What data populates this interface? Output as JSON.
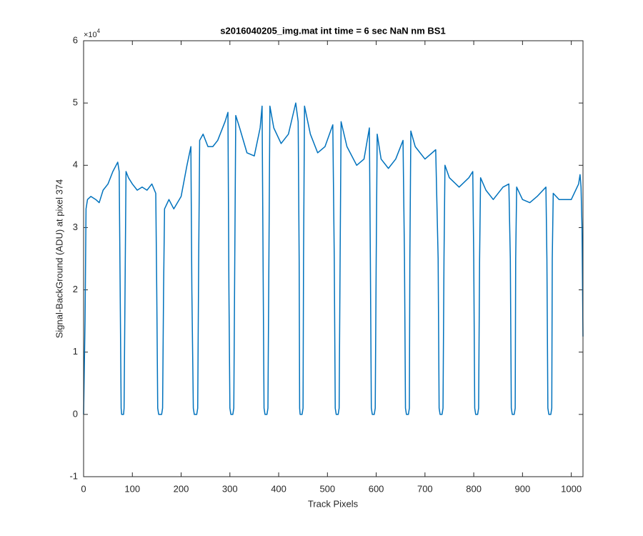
{
  "chart_data": {
    "type": "line",
    "title": "s2016040205_img.mat int time = 6 sec  NaN nm BS1",
    "xlabel": "Track Pixels",
    "ylabel": "Signal-BackGround (ADU) at pixel 374",
    "y_multiplier": {
      "base": "×10",
      "exponent": "4"
    },
    "xlim": [
      0,
      1024
    ],
    "ylim": [
      -1,
      6
    ],
    "xticks": [
      0,
      100,
      200,
      300,
      400,
      500,
      600,
      700,
      800,
      900,
      1000
    ],
    "yticks": [
      -1,
      0,
      1,
      2,
      3,
      4,
      5,
      6
    ],
    "grid": false,
    "series": [
      {
        "color": "#0072bd",
        "x": [
          0,
          3,
          5,
          8,
          15,
          25,
          32,
          40,
          50,
          60,
          70,
          73,
          75,
          77,
          78,
          82,
          83,
          85,
          87,
          92,
          100,
          110,
          120,
          130,
          140,
          148,
          150,
          152,
          154,
          160,
          162,
          164,
          166,
          175,
          185,
          200,
          212,
          220,
          222,
          225,
          227,
          232,
          234,
          236,
          238,
          245,
          255,
          265,
          275,
          290,
          296,
          298,
          300,
          302,
          306,
          308,
          310,
          312,
          320,
          335,
          350,
          362,
          366,
          368,
          370,
          372,
          376,
          378,
          380,
          382,
          390,
          405,
          420,
          435,
          440,
          442,
          443,
          444,
          448,
          450,
          451,
          453,
          465,
          480,
          495,
          511,
          514,
          516,
          518,
          522,
          524,
          526,
          528,
          540,
          560,
          575,
          586,
          588,
          590,
          592,
          596,
          598,
          600,
          602,
          610,
          625,
          640,
          655,
          658,
          660,
          662,
          666,
          668,
          669,
          671,
          680,
          700,
          722,
          727,
          729,
          731,
          735,
          737,
          739,
          741,
          750,
          770,
          790,
          798,
          800,
          802,
          804,
          808,
          810,
          812,
          814,
          825,
          840,
          860,
          872,
          875,
          877,
          879,
          883,
          885,
          886,
          888,
          900,
          915,
          930,
          948,
          950,
          952,
          954,
          958,
          960,
          961,
          963,
          975,
          1000,
          1015,
          1018,
          1020,
          1022,
          1024
        ],
        "values": [
          0,
          1.5,
          3.3,
          3.45,
          3.5,
          3.45,
          3.4,
          3.6,
          3.7,
          3.9,
          4.05,
          3.9,
          2.0,
          0.1,
          0,
          0,
          0.1,
          2.0,
          3.9,
          3.8,
          3.7,
          3.6,
          3.65,
          3.6,
          3.7,
          3.55,
          2.0,
          0.1,
          0,
          0,
          0.1,
          2.0,
          3.3,
          3.45,
          3.3,
          3.5,
          4.0,
          4.3,
          2.0,
          0.1,
          0,
          0,
          0.1,
          2.5,
          4.4,
          4.5,
          4.3,
          4.3,
          4.4,
          4.7,
          4.85,
          2.0,
          0.1,
          0,
          0,
          0.1,
          2.5,
          4.8,
          4.6,
          4.2,
          4.15,
          4.6,
          4.95,
          2.5,
          0.1,
          0,
          0,
          0.1,
          2.5,
          4.95,
          4.6,
          4.35,
          4.5,
          5.0,
          4.7,
          2.5,
          0.1,
          0,
          0,
          0.1,
          2.5,
          4.95,
          4.5,
          4.2,
          4.3,
          4.65,
          2.5,
          0.1,
          0,
          0,
          0.1,
          2.5,
          4.7,
          4.3,
          4.0,
          4.1,
          4.6,
          2.5,
          0.1,
          0,
          0,
          0.1,
          2.5,
          4.5,
          4.1,
          3.95,
          4.1,
          4.4,
          2.5,
          0.1,
          0,
          0,
          0.1,
          2.5,
          4.55,
          4.3,
          4.1,
          4.25,
          2.5,
          0.1,
          0,
          0,
          0.1,
          2.5,
          4.0,
          3.8,
          3.65,
          3.8,
          3.9,
          2.5,
          0.1,
          0,
          0,
          0.1,
          2.5,
          3.8,
          3.6,
          3.45,
          3.65,
          3.7,
          2.5,
          0.1,
          0,
          0,
          0.1,
          2.5,
          3.65,
          3.45,
          3.4,
          3.5,
          3.65,
          2.5,
          0.1,
          0,
          0,
          0.1,
          2.5,
          3.55,
          3.45,
          3.45,
          3.7,
          3.85,
          3.65,
          3.0,
          1.25
        ]
      }
    ]
  }
}
